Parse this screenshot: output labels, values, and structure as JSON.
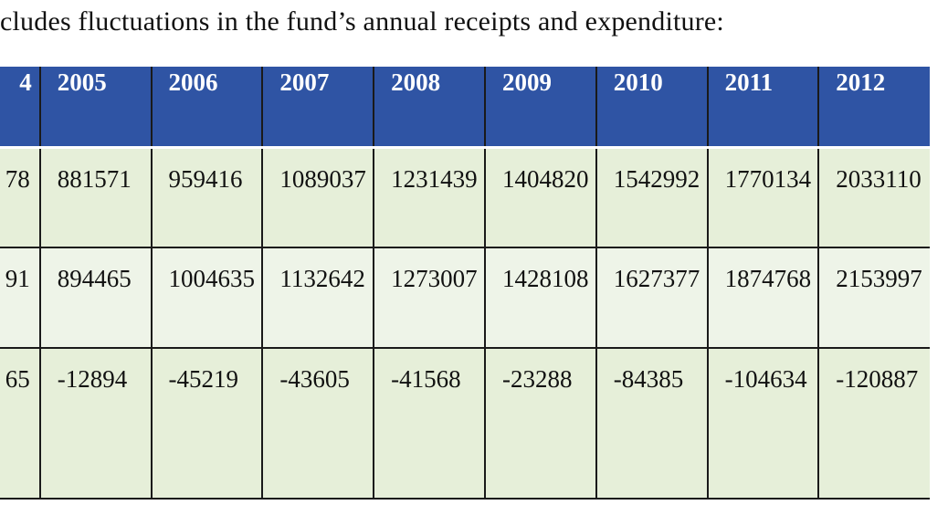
{
  "caption": "cludes fluctuations in the fund’s annual receipts and expenditure:",
  "table": {
    "headers": [
      "4",
      "2005",
      "2006",
      "2007",
      "2008",
      "2009",
      "2010",
      "2011",
      "2012"
    ],
    "rows": [
      [
        "78",
        "881571",
        "959416",
        "1089037",
        "1231439",
        "1404820",
        "1542992",
        "1770134",
        "2033110"
      ],
      [
        "91",
        "894465",
        "1004635",
        "1132642",
        "1273007",
        "1428108",
        "1627377",
        "1874768",
        "2153997"
      ],
      [
        "65",
        "-12894",
        "-45219",
        "-43605",
        "-41568",
        "-23288",
        "-84385",
        "-104634",
        "-120887"
      ]
    ]
  },
  "colors": {
    "header_bg": "#2f54a4",
    "row_green": "#e6efd9",
    "row_light": "#eef4e8"
  }
}
